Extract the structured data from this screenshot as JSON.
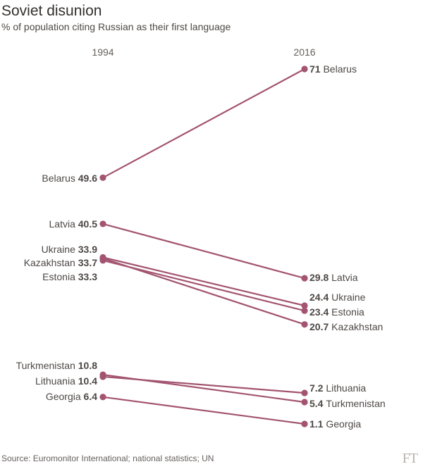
{
  "title": "Soviet disunion",
  "subtitle": "% of population citing Russian as their first language",
  "source": "Source: Euromonitor International; national statistics; UN",
  "logo_text": "FT",
  "chart_data": {
    "type": "line",
    "title": "Soviet disunion",
    "subtitle": "% of population citing Russian as their first language",
    "x": [
      "1994",
      "2016"
    ],
    "unit": "%",
    "line_color": "#a35470",
    "series": [
      {
        "name": "Belarus",
        "values": [
          49.6,
          71
        ]
      },
      {
        "name": "Latvia",
        "values": [
          40.5,
          29.8
        ]
      },
      {
        "name": "Ukraine",
        "values": [
          33.9,
          24.4
        ]
      },
      {
        "name": "Kazakhstan",
        "values": [
          33.7,
          20.7
        ]
      },
      {
        "name": "Estonia",
        "values": [
          33.3,
          23.4
        ]
      },
      {
        "name": "Turkmenistan",
        "values": [
          10.8,
          5.4
        ]
      },
      {
        "name": "Lithuania",
        "values": [
          10.4,
          7.2
        ]
      },
      {
        "name": "Georgia",
        "values": [
          6.4,
          1.1
        ]
      }
    ],
    "left_labels": [
      {
        "name": "Belarus",
        "value": "49.6"
      },
      {
        "name": "Latvia",
        "value": "40.5"
      },
      {
        "name": "Ukraine",
        "value": "33.9"
      },
      {
        "name": "Kazakhstan",
        "value": "33.7"
      },
      {
        "name": "Estonia",
        "value": "33.3"
      },
      {
        "name": "Turkmenistan",
        "value": "10.8"
      },
      {
        "name": "Lithuania",
        "value": "10.4"
      },
      {
        "name": "Georgia",
        "value": "6.4"
      }
    ],
    "right_labels": [
      {
        "name": "Belarus",
        "value": "71"
      },
      {
        "name": "Latvia",
        "value": "29.8"
      },
      {
        "name": "Ukraine",
        "value": "24.4"
      },
      {
        "name": "Estonia",
        "value": "23.4"
      },
      {
        "name": "Kazakhstan",
        "value": "20.7"
      },
      {
        "name": "Lithuania",
        "value": "7.2"
      },
      {
        "name": "Turkmenistan",
        "value": "5.4"
      },
      {
        "name": "Georgia",
        "value": "1.1"
      }
    ]
  }
}
